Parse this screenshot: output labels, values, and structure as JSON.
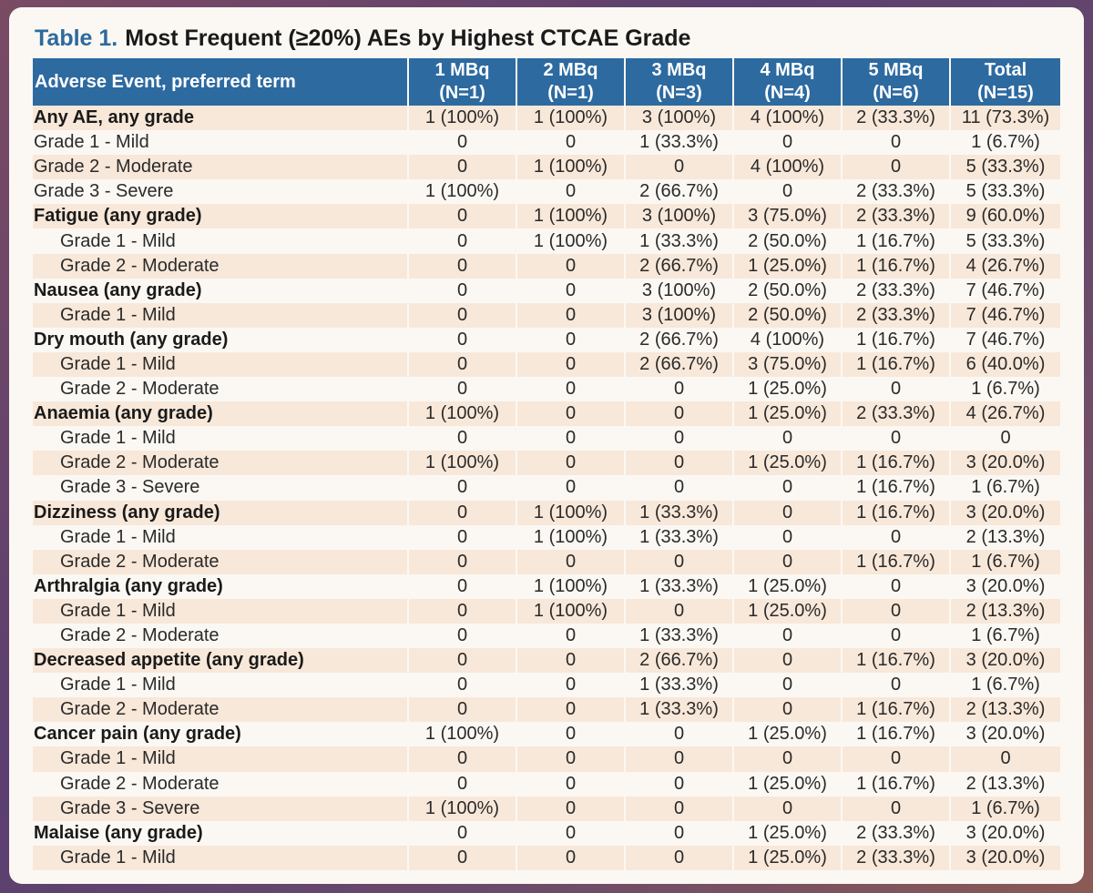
{
  "title": {
    "prefix": "Table 1.",
    "text": "Most Frequent (≥20%) AEs by Highest CTCAE Grade"
  },
  "header": {
    "col0": "Adverse Event, preferred term",
    "dose_columns": [
      {
        "line1": "1 MBq",
        "line2": "(N=1)"
      },
      {
        "line1": "2 MBq",
        "line2": "(N=1)"
      },
      {
        "line1": "3 MBq",
        "line2": "(N=3)"
      },
      {
        "line1": "4 MBq",
        "line2": "(N=4)"
      },
      {
        "line1": "5 MBq",
        "line2": "(N=6)"
      },
      {
        "line1": "Total",
        "line2": "(N=15)"
      }
    ]
  },
  "rows": [
    {
      "label": "Any AE, any grade",
      "kind": "cat",
      "values": [
        "1 (100%)",
        "1 (100%)",
        "3 (100%)",
        "4 (100%)",
        "2 (33.3%)",
        "11 (73.3%)"
      ]
    },
    {
      "label": "Grade 1 - Mild",
      "kind": "top",
      "values": [
        "0",
        "0",
        "1 (33.3%)",
        "0",
        "0",
        "1 (6.7%)"
      ]
    },
    {
      "label": "Grade 2 - Moderate",
      "kind": "top",
      "values": [
        "0",
        "1 (100%)",
        "0",
        "4 (100%)",
        "0",
        "5 (33.3%)"
      ]
    },
    {
      "label": "Grade 3 - Severe",
      "kind": "top",
      "values": [
        "1 (100%)",
        "0",
        "2 (66.7%)",
        "0",
        "2 (33.3%)",
        "5 (33.3%)"
      ]
    },
    {
      "label": "Fatigue (any grade)",
      "kind": "cat",
      "values": [
        "0",
        "1 (100%)",
        "3 (100%)",
        "3 (75.0%)",
        "2 (33.3%)",
        "9 (60.0%)"
      ]
    },
    {
      "label": "Grade 1 - Mild",
      "kind": "sub",
      "values": [
        "0",
        "1 (100%)",
        "1 (33.3%)",
        "2 (50.0%)",
        "1 (16.7%)",
        "5 (33.3%)"
      ]
    },
    {
      "label": "Grade 2 - Moderate",
      "kind": "sub",
      "values": [
        "0",
        "0",
        "2 (66.7%)",
        "1 (25.0%)",
        "1 (16.7%)",
        "4 (26.7%)"
      ]
    },
    {
      "label": "Nausea (any grade)",
      "kind": "cat",
      "values": [
        "0",
        "0",
        "3 (100%)",
        "2 (50.0%)",
        "2 (33.3%)",
        "7 (46.7%)"
      ]
    },
    {
      "label": "Grade 1 - Mild",
      "kind": "sub",
      "values": [
        "0",
        "0",
        "3 (100%)",
        "2 (50.0%)",
        "2 (33.3%)",
        "7 (46.7%)"
      ]
    },
    {
      "label": "Dry mouth (any grade)",
      "kind": "cat",
      "values": [
        "0",
        "0",
        "2 (66.7%)",
        "4 (100%)",
        "1 (16.7%)",
        "7 (46.7%)"
      ]
    },
    {
      "label": "Grade 1 - Mild",
      "kind": "sub",
      "values": [
        "0",
        "0",
        "2 (66.7%)",
        "3 (75.0%)",
        "1 (16.7%)",
        "6 (40.0%)"
      ]
    },
    {
      "label": "Grade 2 - Moderate",
      "kind": "sub",
      "values": [
        "0",
        "0",
        "0",
        "1 (25.0%)",
        "0",
        "1 (6.7%)"
      ]
    },
    {
      "label": "Anaemia (any grade)",
      "kind": "cat",
      "values": [
        "1 (100%)",
        "0",
        "0",
        "1 (25.0%)",
        "2 (33.3%)",
        "4 (26.7%)"
      ]
    },
    {
      "label": "Grade 1 - Mild",
      "kind": "sub",
      "values": [
        "0",
        "0",
        "0",
        "0",
        "0",
        "0"
      ]
    },
    {
      "label": "Grade 2 - Moderate",
      "kind": "sub",
      "values": [
        "1 (100%)",
        "0",
        "0",
        "1 (25.0%)",
        "1 (16.7%)",
        "3 (20.0%)"
      ]
    },
    {
      "label": "Grade 3 - Severe",
      "kind": "sub",
      "values": [
        "0",
        "0",
        "0",
        "0",
        "1 (16.7%)",
        "1 (6.7%)"
      ]
    },
    {
      "label": "Dizziness (any grade)",
      "kind": "cat",
      "values": [
        "0",
        "1 (100%)",
        "1 (33.3%)",
        "0",
        "1 (16.7%)",
        "3 (20.0%)"
      ]
    },
    {
      "label": "Grade 1 - Mild",
      "kind": "sub",
      "values": [
        "0",
        "1 (100%)",
        "1 (33.3%)",
        "0",
        "0",
        "2 (13.3%)"
      ]
    },
    {
      "label": "Grade 2 - Moderate",
      "kind": "sub",
      "values": [
        "0",
        "0",
        "0",
        "0",
        "1 (16.7%)",
        "1 (6.7%)"
      ]
    },
    {
      "label": "Arthralgia (any grade)",
      "kind": "cat",
      "values": [
        "0",
        "1 (100%)",
        "1 (33.3%)",
        "1 (25.0%)",
        "0",
        "3 (20.0%)"
      ]
    },
    {
      "label": "Grade 1 - Mild",
      "kind": "sub",
      "values": [
        "0",
        "1 (100%)",
        "0",
        "1 (25.0%)",
        "0",
        "2 (13.3%)"
      ]
    },
    {
      "label": "Grade 2 - Moderate",
      "kind": "sub",
      "values": [
        "0",
        "0",
        "1 (33.3%)",
        "0",
        "0",
        "1 (6.7%)"
      ]
    },
    {
      "label": "Decreased appetite (any grade)",
      "kind": "cat",
      "values": [
        "0",
        "0",
        "2 (66.7%)",
        "0",
        "1 (16.7%)",
        "3 (20.0%)"
      ]
    },
    {
      "label": "Grade 1 - Mild",
      "kind": "sub",
      "values": [
        "0",
        "0",
        "1 (33.3%)",
        "0",
        "0",
        "1 (6.7%)"
      ]
    },
    {
      "label": "Grade 2 - Moderate",
      "kind": "sub",
      "values": [
        "0",
        "0",
        "1 (33.3%)",
        "0",
        "1 (16.7%)",
        "2 (13.3%)"
      ]
    },
    {
      "label": "Cancer pain (any grade)",
      "kind": "cat",
      "values": [
        "1 (100%)",
        "0",
        "0",
        "1 (25.0%)",
        "1 (16.7%)",
        "3 (20.0%)"
      ]
    },
    {
      "label": "Grade 1 - Mild",
      "kind": "sub",
      "values": [
        "0",
        "0",
        "0",
        "0",
        "0",
        "0"
      ]
    },
    {
      "label": "Grade 2 - Moderate",
      "kind": "sub",
      "values": [
        "0",
        "0",
        "0",
        "1 (25.0%)",
        "1 (16.7%)",
        "2 (13.3%)"
      ]
    },
    {
      "label": "Grade 3 - Severe",
      "kind": "sub",
      "values": [
        "1 (100%)",
        "0",
        "0",
        "0",
        "0",
        "1 (6.7%)"
      ]
    },
    {
      "label": "Malaise (any grade)",
      "kind": "cat",
      "values": [
        "0",
        "0",
        "0",
        "1 (25.0%)",
        "2 (33.3%)",
        "3 (20.0%)"
      ]
    },
    {
      "label": "Grade 1 - Mild",
      "kind": "sub",
      "values": [
        "0",
        "0",
        "0",
        "1 (25.0%)",
        "2 (33.3%)",
        "3 (20.0%)"
      ]
    }
  ],
  "colors": {
    "title_accent": "#2b6a9e",
    "header_bg": "#2d6aa0",
    "row_band": "#f8e8d9",
    "row_plain": "#fbf8f3"
  }
}
